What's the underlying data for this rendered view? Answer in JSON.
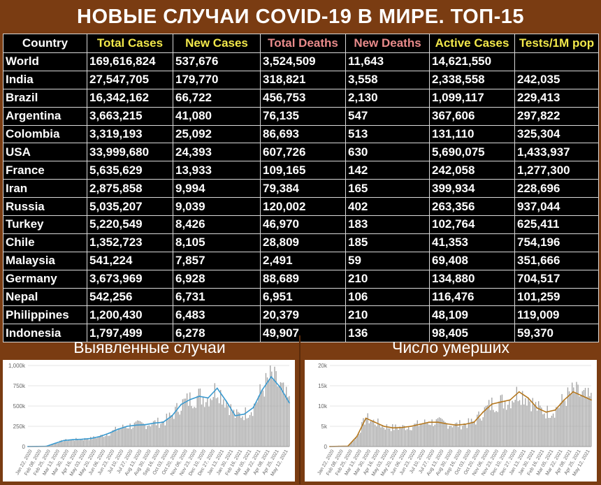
{
  "title": "НОВЫЕ СЛУЧАИ COVID-19 В МИРЕ. ТОП-15",
  "colors": {
    "background": "#7a3c12",
    "country_header": "#ffffff",
    "total_cases_header": "#f2e84a",
    "new_cases_header": "#f2e84a",
    "total_deaths_header": "#e98b8b",
    "new_deaths_header": "#e98b8b",
    "active_cases_header": "#f2e84a",
    "tests_header": "#f2e84a",
    "cases_bars": "#a6a6a6",
    "cases_line": "#3a9ad0",
    "deaths_bars": "#a6a6a6",
    "deaths_line": "#b5781f"
  },
  "table": {
    "columns": [
      "Country",
      "Total Cases",
      "New Cases",
      "Total Deaths",
      "New Deaths",
      "Active Cases",
      "Tests/1M pop"
    ],
    "rows": [
      [
        "World",
        "169,616,824",
        "537,676",
        "3,524,509",
        "11,643",
        "14,621,550",
        ""
      ],
      [
        "India",
        "27,547,705",
        "179,770",
        "318,821",
        "3,558",
        "2,338,558",
        "242,035"
      ],
      [
        "Brazil",
        "16,342,162",
        "66,722",
        "456,753",
        "2,130",
        "1,099,117",
        "229,413"
      ],
      [
        "Argentina",
        "3,663,215",
        "41,080",
        "76,135",
        "547",
        "367,606",
        "297,822"
      ],
      [
        "Colombia",
        "3,319,193",
        "25,092",
        "86,693",
        "513",
        "131,110",
        "325,304"
      ],
      [
        "USA",
        "33,999,680",
        "24,393",
        "607,726",
        "630",
        "5,690,075",
        "1,433,937"
      ],
      [
        "France",
        "5,635,629",
        "13,933",
        "109,165",
        "142",
        "242,058",
        "1,277,300"
      ],
      [
        "Iran",
        "2,875,858",
        "9,994",
        "79,384",
        "165",
        "399,934",
        "228,696"
      ],
      [
        "Russia",
        "5,035,207",
        "9,039",
        "120,002",
        "402",
        "263,356",
        "937,044"
      ],
      [
        "Turkey",
        "5,220,549",
        "8,426",
        "46,970",
        "183",
        "102,764",
        "625,411"
      ],
      [
        "Chile",
        "1,352,723",
        "8,105",
        "28,809",
        "185",
        "41,353",
        "754,196"
      ],
      [
        "Malaysia",
        "541,224",
        "7,857",
        "2,491",
        "59",
        "69,408",
        "351,666"
      ],
      [
        "Germany",
        "3,673,969",
        "6,928",
        "88,689",
        "210",
        "134,880",
        "704,517"
      ],
      [
        "Nepal",
        "542,256",
        "6,731",
        "6,951",
        "106",
        "116,476",
        "101,259"
      ],
      [
        "Philippines",
        "1,200,430",
        "6,483",
        "20,379",
        "210",
        "48,109",
        "119,009"
      ],
      [
        "Indonesia",
        "1,797,499",
        "6,278",
        "49,907",
        "136",
        "98,405",
        "59,370"
      ]
    ]
  },
  "sections": {
    "cases": "Выявленные случаи",
    "deaths": "Число умерших"
  },
  "chart_data": [
    {
      "type": "bar",
      "overlay": "line (7-day moving average)",
      "ylim": [
        0,
        1000000
      ],
      "y_ticks": [
        "0",
        "250k",
        "500k",
        "750k",
        "1,000k"
      ],
      "y_tick_values": [
        0,
        250000,
        500000,
        750000,
        1000000
      ],
      "grid": true,
      "x_ticks": [
        "Jan 22, 2020",
        "Feb 08, 2020",
        "Feb 25, 2020",
        "Mar 13, 2020",
        "Mar 30, 2020",
        "Apr 16, 2020",
        "May 03, 2020",
        "May 20, 2020",
        "Jun 06, 2020",
        "Jun 23, 2020",
        "Jul 10, 2020",
        "Jul 27, 2020",
        "Aug 13, 2020",
        "Aug 30, 2020",
        "Sep 16, 2020",
        "Oct 03, 2020",
        "Oct 20, 2020",
        "Nov 06, 2020",
        "Nov 23, 2020",
        "Dec 10, 2020",
        "Dec 27, 2020",
        "Jan 13, 2021",
        "Jan 30, 2021",
        "Feb 16, 2021",
        "Mar 05, 2021",
        "Mar 22, 2021",
        "Apr 08, 2021",
        "Apr 25, 2021",
        "May 12, 2021"
      ],
      "avg_points": {
        "x": [
          "Jan 22, 2020",
          "Feb 08, 2020",
          "Feb 25, 2020",
          "Mar 13, 2020",
          "Mar 30, 2020",
          "Apr 16, 2020",
          "May 03, 2020",
          "May 20, 2020",
          "Jun 06, 2020",
          "Jun 23, 2020",
          "Jul 10, 2020",
          "Jul 27, 2020",
          "Aug 13, 2020",
          "Aug 30, 2020",
          "Sep 16, 2020",
          "Oct 03, 2020",
          "Oct 20, 2020",
          "Nov 06, 2020",
          "Nov 23, 2020",
          "Dec 10, 2020",
          "Dec 27, 2020",
          "Jan 13, 2021",
          "Jan 30, 2021",
          "Feb 16, 2021",
          "Mar 05, 2021",
          "Mar 22, 2021",
          "Apr 08, 2021",
          "Apr 25, 2021",
          "May 12, 2021",
          "May 29, 2021"
        ],
        "y": [
          1000,
          2000,
          3000,
          40000,
          75000,
          85000,
          90000,
          100000,
          125000,
          165000,
          215000,
          250000,
          265000,
          270000,
          290000,
          300000,
          380000,
          520000,
          580000,
          620000,
          600000,
          720000,
          560000,
          380000,
          400000,
          480000,
          700000,
          860000,
          730000,
          540000
        ]
      }
    },
    {
      "type": "bar",
      "overlay": "line (7-day moving average)",
      "ylim": [
        0,
        20000
      ],
      "y_ticks": [
        "0",
        "5k",
        "10k",
        "15k",
        "20k"
      ],
      "y_tick_values": [
        0,
        5000,
        10000,
        15000,
        20000
      ],
      "grid": true,
      "x_ticks": [
        "Jan 22, 2020",
        "Feb 08, 2020",
        "Feb 25, 2020",
        "Mar 13, 2020",
        "Mar 30, 2020",
        "Apr 16, 2020",
        "May 03, 2020",
        "May 20, 2020",
        "Jun 06, 2020",
        "Jun 23, 2020",
        "Jul 10, 2020",
        "Jul 27, 2020",
        "Aug 13, 2020",
        "Aug 30, 2020",
        "Sep 16, 2020",
        "Oct 03, 2020",
        "Oct 20, 2020",
        "Nov 06, 2020",
        "Nov 23, 2020",
        "Dec 10, 2020",
        "Dec 27, 2020",
        "Jan 13, 2021",
        "Jan 30, 2021",
        "Feb 16, 2021",
        "Mar 05, 2021",
        "Mar 22, 2021",
        "Apr 08, 2021",
        "Apr 25, 2021",
        "May 12, 2021"
      ],
      "avg_points": {
        "x": [
          "Jan 22, 2020",
          "Feb 08, 2020",
          "Feb 25, 2020",
          "Mar 13, 2020",
          "Mar 30, 2020",
          "Apr 16, 2020",
          "May 03, 2020",
          "May 20, 2020",
          "Jun 06, 2020",
          "Jun 23, 2020",
          "Jul 10, 2020",
          "Jul 27, 2020",
          "Aug 13, 2020",
          "Aug 30, 2020",
          "Sep 16, 2020",
          "Oct 03, 2020",
          "Oct 20, 2020",
          "Nov 06, 2020",
          "Nov 23, 2020",
          "Dec 10, 2020",
          "Dec 27, 2020",
          "Jan 13, 2021",
          "Jan 30, 2021",
          "Feb 16, 2021",
          "Mar 05, 2021",
          "Mar 22, 2021",
          "Apr 08, 2021",
          "Apr 25, 2021",
          "May 12, 2021",
          "May 29, 2021"
        ],
        "y": [
          20,
          50,
          100,
          2500,
          7000,
          6000,
          5000,
          4600,
          4700,
          5000,
          5500,
          6000,
          6000,
          5600,
          5300,
          5500,
          6000,
          8500,
          10500,
          11000,
          11500,
          13500,
          12000,
          9500,
          8500,
          9000,
          11500,
          13500,
          12500,
          11500
        ]
      }
    }
  ]
}
